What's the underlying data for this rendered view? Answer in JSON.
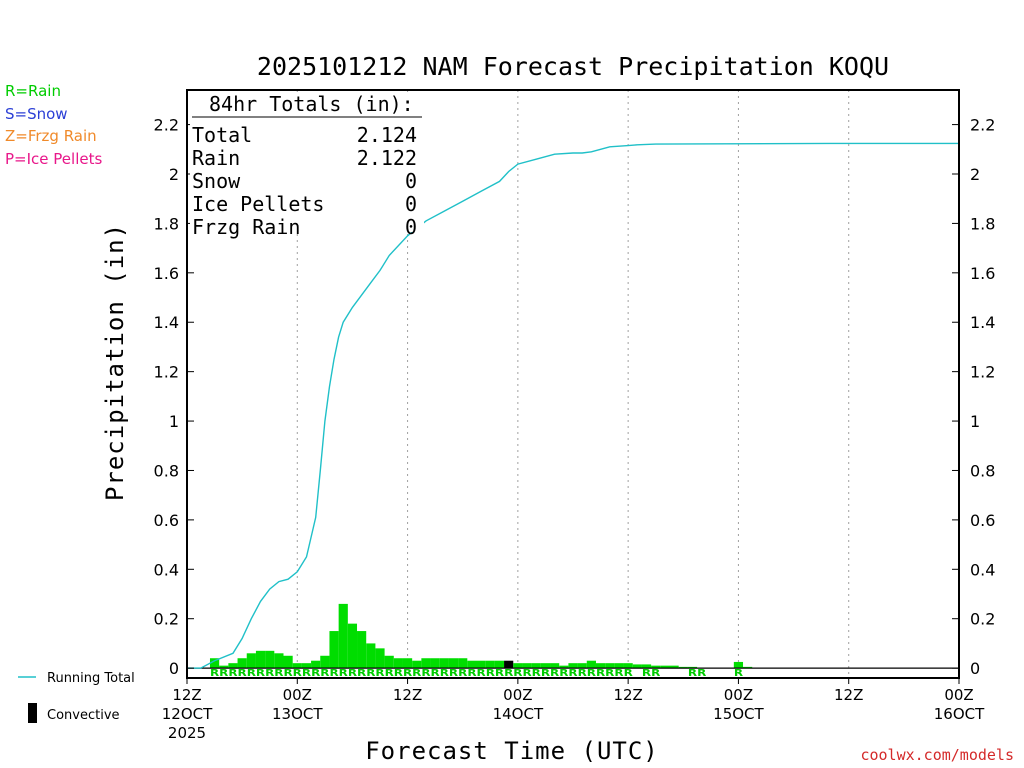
{
  "chart_data": {
    "type": "bar+line",
    "title": "2025101212 NAM Forecast Precipitation KOQU",
    "ylabel": "Precipitation (in)",
    "xlabel": "Forecast Time (UTC)",
    "ylim": [
      -0.04,
      2.34
    ],
    "yticks": [
      0,
      0.2,
      0.4,
      0.6,
      0.8,
      1,
      1.2,
      1.4,
      1.6,
      1.8,
      2,
      2.2
    ],
    "ytick_labels": [
      "0",
      "0.2",
      "0.4",
      "0.6",
      "0.8",
      "1",
      "1.2",
      "1.4",
      "1.6",
      "1.8",
      "2",
      "2.2"
    ],
    "xlim_hours": [
      0,
      84
    ],
    "xticks": [
      {
        "hour": 0,
        "label": "12Z",
        "date": "12OCT",
        "year": "2025"
      },
      {
        "hour": 12,
        "label": "00Z",
        "date": "13OCT",
        "year": ""
      },
      {
        "hour": 24,
        "label": "12Z",
        "date": "",
        "year": ""
      },
      {
        "hour": 36,
        "label": "00Z",
        "date": "14OCT",
        "year": ""
      },
      {
        "hour": 48,
        "label": "12Z",
        "date": "",
        "year": ""
      },
      {
        "hour": 60,
        "label": "00Z",
        "date": "15OCT",
        "year": ""
      },
      {
        "hour": 72,
        "label": "12Z",
        "date": "",
        "year": ""
      },
      {
        "hour": 84,
        "label": "00Z",
        "date": "16OCT",
        "year": ""
      }
    ],
    "bar_interval_hours": 1,
    "bar_start_hour": 3,
    "hourly_precip": [
      0.04,
      0.01,
      0.02,
      0.04,
      0.06,
      0.07,
      0.07,
      0.06,
      0.05,
      0.02,
      0.02,
      0.03,
      0.05,
      0.15,
      0.26,
      0.18,
      0.15,
      0.1,
      0.08,
      0.05,
      0.04,
      0.04,
      0.03,
      0.04,
      0.04,
      0.04,
      0.04,
      0.04,
      0.03,
      0.03,
      0.03,
      0.03,
      0.03,
      0.02,
      0.02,
      0.02,
      0.02,
      0.02,
      0.01,
      0.02,
      0.02,
      0.03,
      0.02,
      0.02,
      0.02,
      0.02,
      0.015,
      0.015,
      0.01,
      0.01,
      0.01,
      0.005,
      0.005,
      0.0,
      0.0,
      0.0,
      0.0,
      0.025,
      0.005
    ],
    "convective_hours": [
      35
    ],
    "running_total": {
      "hours": [
        0,
        1.5,
        3,
        5,
        6,
        7,
        8,
        9,
        10,
        11,
        12,
        13,
        14,
        14.5,
        15,
        15.5,
        16,
        16.5,
        17,
        18,
        19,
        20,
        21,
        22,
        24,
        26,
        28,
        30,
        32,
        34,
        35,
        36,
        38,
        40,
        42,
        43,
        44,
        46,
        48,
        49,
        50,
        51,
        70,
        84
      ],
      "values": [
        0,
        0,
        0.03,
        0.06,
        0.12,
        0.2,
        0.27,
        0.32,
        0.35,
        0.36,
        0.39,
        0.45,
        0.61,
        0.8,
        1.0,
        1.14,
        1.25,
        1.34,
        1.4,
        1.46,
        1.51,
        1.56,
        1.61,
        1.67,
        1.75,
        1.81,
        1.85,
        1.89,
        1.93,
        1.97,
        2.01,
        2.04,
        2.06,
        2.08,
        2.085,
        2.085,
        2.09,
        2.11,
        2.115,
        2.118,
        2.12,
        2.121,
        2.124,
        2.124
      ]
    },
    "ptype_labels": [
      {
        "text": "RRRRRRRRRRRRRRRRRRRRRRRRRRRRRRRRRRRRRRRRRRRRRR",
        "start_hour": 3
      },
      {
        "text": "RR",
        "start_hour": 50
      },
      {
        "text": "RR",
        "start_hour": 55
      },
      {
        "text": "R",
        "start_hour": 60
      }
    ],
    "colors": {
      "bars": "#00dd00",
      "line": "#20c0c8",
      "convective": "#000000",
      "grid": "#a0a0a0"
    }
  },
  "totals_box": {
    "header": "84hr Totals (in):",
    "rows": [
      {
        "label": "Total",
        "value": "2.124"
      },
      {
        "label": "Rain",
        "value": "2.122"
      },
      {
        "label": "Snow",
        "value": "0"
      },
      {
        "label": "Ice Pellets",
        "value": "0"
      },
      {
        "label": "Frzg Rain",
        "value": "0"
      }
    ]
  },
  "ptype_legend": [
    {
      "text": "R=Rain",
      "color": "#00cc00"
    },
    {
      "text": "S=Snow",
      "color": "#2b3fd6"
    },
    {
      "text": "Z=Frzg Rain",
      "color": "#f08a2a"
    },
    {
      "text": "P=Ice Pellets",
      "color": "#e8178a"
    }
  ],
  "bottom_legend": {
    "running_total": "Running Total",
    "convective": "Convective"
  },
  "credit": {
    "text": "coolwx.com/models",
    "color": "#d42a2a"
  }
}
